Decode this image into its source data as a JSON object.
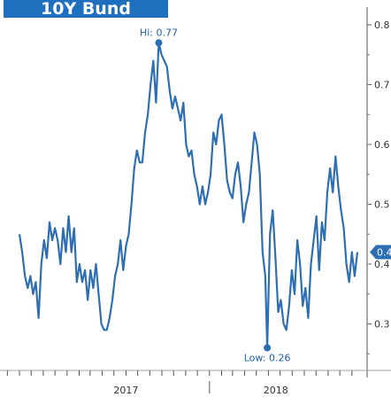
{
  "chart_data": {
    "type": "line",
    "title": "10Y Bund",
    "xlabel": "",
    "ylabel": "",
    "y_ticks": [
      "0.8",
      "0.7",
      "0.6",
      "0.5",
      "0.4",
      "0.3"
    ],
    "ylim": [
      0.2,
      0.82
    ],
    "x_ticks": [
      "2017",
      "2018"
    ],
    "x_start": "2016-09",
    "x_end": "2018-11",
    "grid": false,
    "legend": "none",
    "series": [
      {
        "color": "#2e6fb3",
        "points": [
          [
            "2016-09-01",
            0.45
          ],
          [
            "2016-09-08",
            0.42
          ],
          [
            "2016-09-15",
            0.38
          ],
          [
            "2016-09-22",
            0.36
          ],
          [
            "2016-09-29",
            0.38
          ],
          [
            "2016-10-06",
            0.35
          ],
          [
            "2016-10-13",
            0.37
          ],
          [
            "2016-10-20",
            0.31
          ],
          [
            "2016-10-27",
            0.4
          ],
          [
            "2016-11-03",
            0.44
          ],
          [
            "2016-11-10",
            0.41
          ],
          [
            "2016-11-17",
            0.47
          ],
          [
            "2016-11-24",
            0.44
          ],
          [
            "2016-12-01",
            0.46
          ],
          [
            "2016-12-08",
            0.44
          ],
          [
            "2016-12-15",
            0.4
          ],
          [
            "2016-12-22",
            0.46
          ],
          [
            "2016-12-29",
            0.42
          ],
          [
            "2017-01-05",
            0.48
          ],
          [
            "2017-01-12",
            0.42
          ],
          [
            "2017-01-19",
            0.46
          ],
          [
            "2017-01-26",
            0.37
          ],
          [
            "2017-02-02",
            0.4
          ],
          [
            "2017-02-09",
            0.37
          ],
          [
            "2017-02-16",
            0.39
          ],
          [
            "2017-02-23",
            0.34
          ],
          [
            "2017-03-02",
            0.39
          ],
          [
            "2017-03-09",
            0.36
          ],
          [
            "2017-03-16",
            0.4
          ],
          [
            "2017-03-23",
            0.35
          ],
          [
            "2017-03-30",
            0.3
          ],
          [
            "2017-04-06",
            0.29
          ],
          [
            "2017-04-13",
            0.29
          ],
          [
            "2017-04-20",
            0.31
          ],
          [
            "2017-04-27",
            0.34
          ],
          [
            "2017-05-04",
            0.38
          ],
          [
            "2017-05-11",
            0.4
          ],
          [
            "2017-05-18",
            0.44
          ],
          [
            "2017-05-25",
            0.39
          ],
          [
            "2017-06-01",
            0.43
          ],
          [
            "2017-06-08",
            0.45
          ],
          [
            "2017-06-15",
            0.5
          ],
          [
            "2017-06-22",
            0.56
          ],
          [
            "2017-06-29",
            0.59
          ],
          [
            "2017-07-06",
            0.57
          ],
          [
            "2017-07-13",
            0.57
          ],
          [
            "2017-07-20",
            0.62
          ],
          [
            "2017-07-27",
            0.65
          ],
          [
            "2017-08-03",
            0.7
          ],
          [
            "2017-08-10",
            0.74
          ],
          [
            "2017-08-17",
            0.67
          ],
          [
            "2017-08-24",
            0.77
          ],
          [
            "2017-08-31",
            0.75
          ],
          [
            "2017-09-07",
            0.74
          ],
          [
            "2017-09-14",
            0.73
          ],
          [
            "2017-09-21",
            0.69
          ],
          [
            "2017-09-28",
            0.66
          ],
          [
            "2017-10-05",
            0.68
          ],
          [
            "2017-10-12",
            0.66
          ],
          [
            "2017-10-19",
            0.64
          ],
          [
            "2017-10-26",
            0.67
          ],
          [
            "2017-11-02",
            0.6
          ],
          [
            "2017-11-09",
            0.58
          ],
          [
            "2017-11-16",
            0.59
          ],
          [
            "2017-11-23",
            0.55
          ],
          [
            "2017-11-30",
            0.53
          ],
          [
            "2017-12-07",
            0.5
          ],
          [
            "2017-12-14",
            0.53
          ],
          [
            "2017-12-21",
            0.5
          ],
          [
            "2017-12-28",
            0.52
          ],
          [
            "2018-01-04",
            0.55
          ],
          [
            "2018-01-11",
            0.62
          ],
          [
            "2018-01-18",
            0.6
          ],
          [
            "2018-01-25",
            0.64
          ],
          [
            "2018-02-01",
            0.65
          ],
          [
            "2018-02-08",
            0.6
          ],
          [
            "2018-02-15",
            0.54
          ],
          [
            "2018-02-22",
            0.52
          ],
          [
            "2018-03-01",
            0.51
          ],
          [
            "2018-03-08",
            0.55
          ],
          [
            "2018-03-15",
            0.57
          ],
          [
            "2018-03-22",
            0.53
          ],
          [
            "2018-03-29",
            0.47
          ],
          [
            "2018-04-05",
            0.5
          ],
          [
            "2018-04-12",
            0.52
          ],
          [
            "2018-04-19",
            0.57
          ],
          [
            "2018-04-26",
            0.62
          ],
          [
            "2018-05-03",
            0.6
          ],
          [
            "2018-05-10",
            0.55
          ],
          [
            "2018-05-17",
            0.42
          ],
          [
            "2018-05-24",
            0.38
          ],
          [
            "2018-05-29",
            0.26
          ],
          [
            "2018-06-05",
            0.45
          ],
          [
            "2018-06-12",
            0.49
          ],
          [
            "2018-06-19",
            0.41
          ],
          [
            "2018-06-26",
            0.32
          ],
          [
            "2018-07-03",
            0.34
          ],
          [
            "2018-07-10",
            0.3
          ],
          [
            "2018-07-17",
            0.29
          ],
          [
            "2018-07-24",
            0.33
          ],
          [
            "2018-07-31",
            0.39
          ],
          [
            "2018-08-07",
            0.35
          ],
          [
            "2018-08-14",
            0.44
          ],
          [
            "2018-08-21",
            0.4
          ],
          [
            "2018-08-28",
            0.33
          ],
          [
            "2018-09-04",
            0.36
          ],
          [
            "2018-09-11",
            0.31
          ],
          [
            "2018-09-18",
            0.4
          ],
          [
            "2018-09-25",
            0.44
          ],
          [
            "2018-10-02",
            0.48
          ],
          [
            "2018-10-09",
            0.39
          ],
          [
            "2018-10-16",
            0.47
          ],
          [
            "2018-10-23",
            0.44
          ],
          [
            "2018-10-30",
            0.52
          ],
          [
            "2018-11-06",
            0.56
          ],
          [
            "2018-11-13",
            0.52
          ],
          [
            "2018-11-20",
            0.58
          ],
          [
            "2018-11-27",
            0.53
          ],
          [
            "2018-12-04",
            0.49
          ],
          [
            "2018-12-11",
            0.46
          ],
          [
            "2018-12-18",
            0.4
          ],
          [
            "2018-12-25",
            0.37
          ],
          [
            "2019-01-01",
            0.42
          ],
          [
            "2019-01-08",
            0.38
          ],
          [
            "2019-01-15",
            0.42
          ]
        ]
      }
    ],
    "annotations": [
      {
        "label": "Hi: 0.77",
        "x": "2017-08-24",
        "y": 0.77
      },
      {
        "label": "Low: 0.26",
        "x": "2018-05-29",
        "y": 0.26
      }
    ],
    "last_value_label": "0.4"
  }
}
